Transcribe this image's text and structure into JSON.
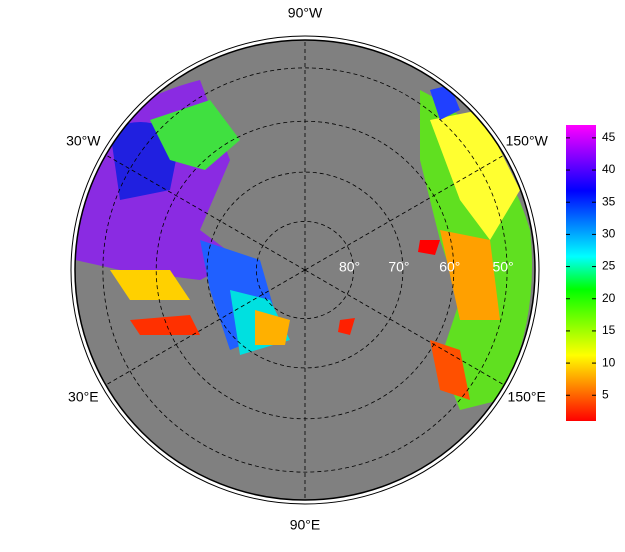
{
  "map": {
    "projection": "polar stereographic",
    "latlim": [
      45,
      90
    ],
    "lon_labels": [
      {
        "value": -90,
        "label": "90°W"
      },
      {
        "value": -30,
        "label": "30°W"
      },
      {
        "value": -150,
        "label": "150°W"
      },
      {
        "value": 30,
        "label": "30°E"
      },
      {
        "value": 150,
        "label": "150°E"
      },
      {
        "value": 90,
        "label": "90°E"
      }
    ],
    "lat_labels": [
      {
        "value": 80,
        "label": "80°"
      },
      {
        "value": 70,
        "label": "70°"
      },
      {
        "value": 60,
        "label": "60°"
      },
      {
        "value": 50,
        "label": "50°"
      }
    ],
    "colorbar": {
      "lim": [
        1,
        47
      ],
      "ticks": [
        5,
        10,
        15,
        20,
        25,
        30,
        35,
        40,
        45
      ],
      "colors": [
        "#ff0000",
        "#ff8000",
        "#ffff00",
        "#80ff00",
        "#00ff00",
        "#00ffff",
        "#0080ff",
        "#0000ff",
        "#8000ff",
        "#ff00ff"
      ]
    }
  }
}
